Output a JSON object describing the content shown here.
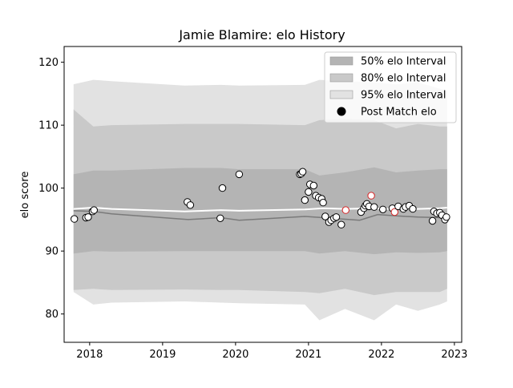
{
  "chart_data": {
    "type": "scatter",
    "title": "Jamie Blamire: elo History",
    "xlabel": "",
    "ylabel": "elo score",
    "xlim": [
      2017.65,
      2023.1
    ],
    "ylim": [
      75.5,
      122.5
    ],
    "xticks": [
      2018,
      2019,
      2020,
      2021,
      2022,
      2023
    ],
    "xtick_labels": [
      "2018",
      "2019",
      "2020",
      "2021",
      "2022",
      "2023"
    ],
    "yticks": [
      80,
      90,
      100,
      110,
      120
    ],
    "ytick_labels": [
      "80",
      "90",
      "100",
      "110",
      "120"
    ],
    "grid": false,
    "legend_position": "top-right",
    "legend": [
      {
        "label": "50% elo Interval",
        "kind": "band",
        "color": "#b4b4b4"
      },
      {
        "label": "80% elo Interval",
        "kind": "band",
        "color": "#c9c9c9"
      },
      {
        "label": "95% elo Interval",
        "kind": "band",
        "color": "#e2e2e2"
      },
      {
        "label": "Post Match elo",
        "kind": "marker",
        "color": "#000000"
      }
    ],
    "colors": {
      "band50": "#b4b4b4",
      "band80": "#c9c9c9",
      "band95": "#e2e2e2",
      "mean_line": "#ffffff",
      "median_line": "#7a7a7a",
      "marker_fill": "#ffffff",
      "marker_edge": "#000000",
      "highlight_edge": "#d62728"
    },
    "series": [
      {
        "name": "95% elo Interval",
        "kind": "band",
        "x": [
          2017.78,
          2018.05,
          2018.3,
          2019.3,
          2019.8,
          2020.05,
          2020.95,
          2021.15,
          2021.5,
          2021.9,
          2022.2,
          2022.5,
          2022.8,
          2022.9
        ],
        "upper": [
          116.5,
          117.2,
          117.0,
          116.3,
          116.4,
          116.3,
          116.4,
          117.2,
          117.0,
          116.8,
          116.5,
          116.8,
          115.8,
          115.5
        ],
        "lower": [
          83.5,
          81.5,
          81.8,
          82.0,
          81.8,
          81.7,
          81.5,
          79.0,
          80.8,
          79.0,
          81.5,
          80.5,
          81.5,
          82.0
        ]
      },
      {
        "name": "80% elo Interval",
        "kind": "band",
        "x": [
          2017.78,
          2018.05,
          2018.3,
          2019.3,
          2019.8,
          2020.05,
          2020.95,
          2021.15,
          2021.5,
          2021.9,
          2022.2,
          2022.5,
          2022.8,
          2022.9
        ],
        "upper": [
          112.5,
          109.8,
          110.0,
          110.2,
          110.2,
          110.2,
          110.0,
          110.8,
          111.0,
          110.8,
          109.5,
          110.2,
          109.8,
          109.8
        ],
        "lower": [
          83.8,
          84.0,
          83.8,
          83.9,
          83.8,
          83.8,
          83.5,
          83.3,
          84.0,
          83.0,
          83.5,
          83.5,
          83.5,
          84.0
        ]
      },
      {
        "name": "50% elo Interval",
        "kind": "band",
        "x": [
          2017.78,
          2018.05,
          2018.3,
          2019.3,
          2019.8,
          2020.05,
          2020.95,
          2021.15,
          2021.5,
          2021.9,
          2022.2,
          2022.5,
          2022.8,
          2022.9
        ],
        "upper": [
          102.2,
          102.8,
          102.8,
          103.2,
          103.2,
          103.0,
          103.0,
          102.0,
          102.5,
          103.3,
          102.5,
          102.8,
          103.0,
          103.0
        ],
        "lower": [
          89.6,
          90.0,
          89.9,
          90.0,
          90.0,
          90.0,
          90.0,
          89.6,
          90.0,
          89.5,
          89.8,
          89.7,
          89.8,
          90.0
        ]
      },
      {
        "name": "",
        "kind": "mean_line",
        "x": [
          2017.78,
          2018.05,
          2018.3,
          2019.3,
          2019.8,
          2020.05,
          2020.95,
          2021.2,
          2021.5,
          2021.9,
          2022.2,
          2022.5,
          2022.8,
          2022.9
        ],
        "values": [
          96.7,
          96.9,
          96.7,
          96.3,
          96.5,
          96.4,
          96.6,
          96.8,
          96.7,
          96.8,
          96.6,
          96.7,
          96.8,
          96.9
        ]
      },
      {
        "name": "",
        "kind": "median_line",
        "x": [
          2017.78,
          2018.05,
          2018.3,
          2019.35,
          2019.8,
          2020.05,
          2020.95,
          2021.2,
          2021.45,
          2021.7,
          2021.95,
          2022.2,
          2022.5,
          2022.8,
          2022.9
        ],
        "values": [
          96.4,
          96.3,
          95.9,
          95.0,
          95.3,
          94.9,
          95.5,
          95.3,
          95.1,
          94.9,
          95.8,
          95.6,
          95.4,
          95.3,
          95.3
        ]
      },
      {
        "name": "Post Match elo",
        "kind": "points",
        "points": [
          {
            "x": 2017.79,
            "y": 95.1
          },
          {
            "x": 2017.95,
            "y": 95.3
          },
          {
            "x": 2017.98,
            "y": 95.4
          },
          {
            "x": 2018.04,
            "y": 96.3
          },
          {
            "x": 2018.06,
            "y": 96.5
          },
          {
            "x": 2019.34,
            "y": 97.8
          },
          {
            "x": 2019.38,
            "y": 97.3
          },
          {
            "x": 2019.79,
            "y": 95.2
          },
          {
            "x": 2019.82,
            "y": 100.0
          },
          {
            "x": 2020.05,
            "y": 102.2
          },
          {
            "x": 2020.88,
            "y": 102.2
          },
          {
            "x": 2020.9,
            "y": 102.3
          },
          {
            "x": 2020.92,
            "y": 102.6
          },
          {
            "x": 2020.95,
            "y": 98.1
          },
          {
            "x": 2021.0,
            "y": 99.4
          },
          {
            "x": 2021.02,
            "y": 100.6
          },
          {
            "x": 2021.07,
            "y": 100.4
          },
          {
            "x": 2021.1,
            "y": 98.8
          },
          {
            "x": 2021.14,
            "y": 98.5
          },
          {
            "x": 2021.18,
            "y": 98.3
          },
          {
            "x": 2021.2,
            "y": 97.7
          },
          {
            "x": 2021.23,
            "y": 95.5
          },
          {
            "x": 2021.28,
            "y": 94.6
          },
          {
            "x": 2021.31,
            "y": 94.9
          },
          {
            "x": 2021.35,
            "y": 95.2
          },
          {
            "x": 2021.38,
            "y": 95.4
          },
          {
            "x": 2021.45,
            "y": 94.2
          },
          {
            "x": 2021.51,
            "y": 96.5,
            "highlight": true
          },
          {
            "x": 2021.72,
            "y": 96.2
          },
          {
            "x": 2021.76,
            "y": 96.8
          },
          {
            "x": 2021.78,
            "y": 97.2
          },
          {
            "x": 2021.8,
            "y": 97.5
          },
          {
            "x": 2021.83,
            "y": 97.1
          },
          {
            "x": 2021.86,
            "y": 98.8,
            "highlight": true
          },
          {
            "x": 2021.9,
            "y": 97.0
          },
          {
            "x": 2022.02,
            "y": 96.6
          },
          {
            "x": 2022.15,
            "y": 96.8
          },
          {
            "x": 2022.18,
            "y": 96.2,
            "highlight": true
          },
          {
            "x": 2022.23,
            "y": 97.1
          },
          {
            "x": 2022.3,
            "y": 96.7
          },
          {
            "x": 2022.33,
            "y": 97.0
          },
          {
            "x": 2022.38,
            "y": 97.2
          },
          {
            "x": 2022.43,
            "y": 96.7
          },
          {
            "x": 2022.7,
            "y": 94.8
          },
          {
            "x": 2022.72,
            "y": 96.3
          },
          {
            "x": 2022.76,
            "y": 96.0
          },
          {
            "x": 2022.8,
            "y": 96.1
          },
          {
            "x": 2022.83,
            "y": 95.7
          },
          {
            "x": 2022.87,
            "y": 95.0
          },
          {
            "x": 2022.89,
            "y": 95.4
          }
        ]
      }
    ]
  }
}
